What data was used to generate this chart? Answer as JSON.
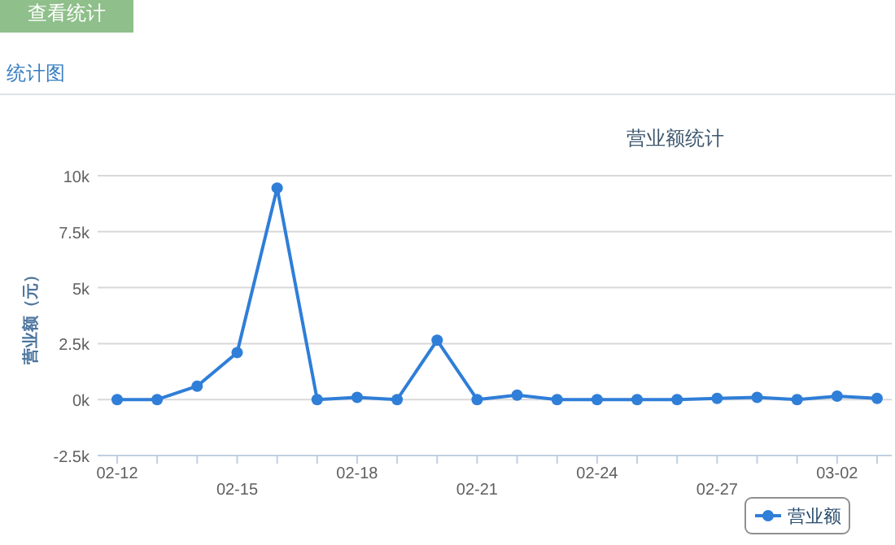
{
  "chart_data": {
    "type": "line",
    "title": "营业额统计",
    "ylabel": "营业额（元）",
    "annotations": [
      "查看统计",
      "统计图"
    ],
    "categories": [
      "02-12",
      null,
      null,
      "02-15",
      null,
      null,
      "02-18",
      null,
      null,
      "02-21",
      null,
      null,
      "02-24",
      null,
      null,
      "02-27",
      null,
      null,
      "03-02",
      null
    ],
    "series": [
      {
        "name": "营业额",
        "color": "#2f7ed8",
        "values": [
          0,
          0,
          600,
          2100,
          9450,
          0,
          100,
          0,
          2650,
          0,
          200,
          0,
          0,
          0,
          0,
          50,
          100,
          0,
          150,
          50
        ]
      }
    ],
    "ylim": [
      -2500,
      10000
    ],
    "yticks": [
      {
        "value": -2500,
        "label": "-2.5k"
      },
      {
        "value": 0,
        "label": "0k"
      },
      {
        "value": 2500,
        "label": "2.5k"
      },
      {
        "value": 5000,
        "label": "5k"
      },
      {
        "value": 7500,
        "label": "7.5k"
      },
      {
        "value": 10000,
        "label": "10k"
      }
    ],
    "grid": "y",
    "legend": "bottom right",
    "marker": "circle",
    "line_style": "solid"
  }
}
